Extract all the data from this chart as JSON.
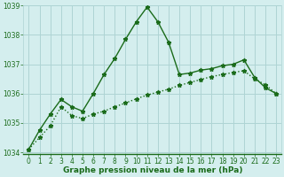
{
  "line1_x": [
    0,
    1,
    2,
    3,
    4,
    5,
    6,
    7,
    8,
    9,
    10,
    11,
    12,
    13,
    14,
    15,
    16,
    17,
    18,
    19,
    20,
    21,
    22,
    23
  ],
  "line1_y": [
    1034.1,
    1034.75,
    1035.3,
    1035.8,
    1035.55,
    1035.4,
    1036.0,
    1036.65,
    1037.2,
    1037.85,
    1038.45,
    1038.95,
    1038.45,
    1037.75,
    1036.65,
    1036.7,
    1036.8,
    1036.85,
    1036.95,
    1037.0,
    1037.15,
    1036.55,
    1036.2,
    1036.0
  ],
  "line2_x": [
    0,
    1,
    2,
    3,
    4,
    5,
    6,
    7,
    8,
    9,
    10,
    11,
    12,
    13,
    14,
    15,
    16,
    17,
    18,
    19,
    20,
    21,
    22,
    23
  ],
  "line2_y": [
    1034.1,
    1034.5,
    1034.9,
    1035.55,
    1035.25,
    1035.15,
    1035.3,
    1035.4,
    1035.55,
    1035.68,
    1035.82,
    1035.95,
    1036.05,
    1036.15,
    1036.28,
    1036.38,
    1036.48,
    1036.58,
    1036.65,
    1036.72,
    1036.78,
    1036.5,
    1036.3,
    1036.0
  ],
  "line_color": "#1a6b1a",
  "bg_color": "#d4eeee",
  "grid_color": "#aed4d4",
  "xlabel": "Graphe pression niveau de la mer (hPa)",
  "ylim": [
    1034,
    1039
  ],
  "xlim": [
    -0.5,
    23.5
  ],
  "yticks": [
    1034,
    1035,
    1036,
    1037,
    1038,
    1039
  ],
  "xticks": [
    0,
    1,
    2,
    3,
    4,
    5,
    6,
    7,
    8,
    9,
    10,
    11,
    12,
    13,
    14,
    15,
    16,
    17,
    18,
    19,
    20,
    21,
    22,
    23
  ],
  "xlabel_fontsize": 6.5,
  "tick_fontsize": 5.5,
  "line_width": 1.0,
  "marker_size": 3.5
}
